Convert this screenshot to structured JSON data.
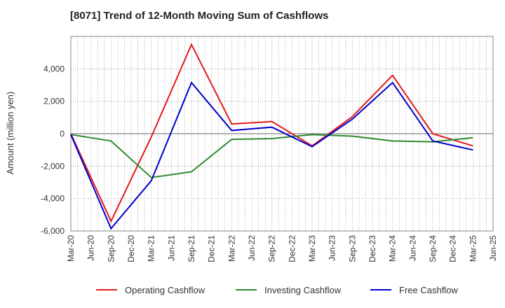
{
  "chart_data": {
    "type": "line",
    "title": "[8071]  Trend of 12-Month Moving Sum of Cashflows",
    "xlabel": "",
    "ylabel": "Amount (million yen)",
    "ylim": [
      -6000,
      6000
    ],
    "yticks": [
      -6000,
      -4000,
      -2000,
      0,
      2000,
      4000
    ],
    "ytick_labels": [
      "-6,000",
      "-4,000",
      "-2,000",
      "0",
      "2,000",
      "4,000"
    ],
    "x_categories": [
      "Mar-20",
      "Jun-20",
      "Sep-20",
      "Dec-20",
      "Mar-21",
      "Jun-21",
      "Sep-21",
      "Dec-21",
      "Mar-22",
      "Jun-22",
      "Sep-22",
      "Dec-22",
      "Mar-23",
      "Jun-23",
      "Sep-23",
      "Dec-23",
      "Mar-24",
      "Jun-24",
      "Sep-24",
      "Dec-24",
      "Mar-25",
      "Jun-25"
    ],
    "grid": true,
    "legend_position": "bottom",
    "series": [
      {
        "name": "Operating Cashflow",
        "color": "#e41a1c",
        "points": [
          [
            "Mar-20",
            0
          ],
          [
            "Sep-20",
            -5400
          ],
          [
            "Mar-21",
            -200
          ],
          [
            "Sep-21",
            5500
          ],
          [
            "Mar-22",
            600
          ],
          [
            "Sep-22",
            750
          ],
          [
            "Mar-23",
            -750
          ],
          [
            "Sep-23",
            1050
          ],
          [
            "Mar-24",
            3600
          ],
          [
            "Sep-24",
            0
          ],
          [
            "Mar-25",
            -750
          ]
        ]
      },
      {
        "name": "Investing Cashflow",
        "color": "#2e8b2e",
        "points": [
          [
            "Mar-20",
            -50
          ],
          [
            "Sep-20",
            -450
          ],
          [
            "Mar-21",
            -2700
          ],
          [
            "Sep-21",
            -2350
          ],
          [
            "Mar-22",
            -350
          ],
          [
            "Sep-22",
            -300
          ],
          [
            "Mar-23",
            -50
          ],
          [
            "Sep-23",
            -150
          ],
          [
            "Mar-24",
            -450
          ],
          [
            "Sep-24",
            -500
          ],
          [
            "Mar-25",
            -250
          ]
        ]
      },
      {
        "name": "Free Cashflow",
        "color": "#0000cc",
        "points": [
          [
            "Mar-20",
            -50
          ],
          [
            "Sep-20",
            -5850
          ],
          [
            "Mar-21",
            -2900
          ],
          [
            "Sep-21",
            3150
          ],
          [
            "Mar-22",
            200
          ],
          [
            "Sep-22",
            400
          ],
          [
            "Mar-23",
            -800
          ],
          [
            "Sep-23",
            900
          ],
          [
            "Mar-24",
            3150
          ],
          [
            "Sep-24",
            -450
          ],
          [
            "Mar-25",
            -1000
          ]
        ]
      }
    ]
  }
}
